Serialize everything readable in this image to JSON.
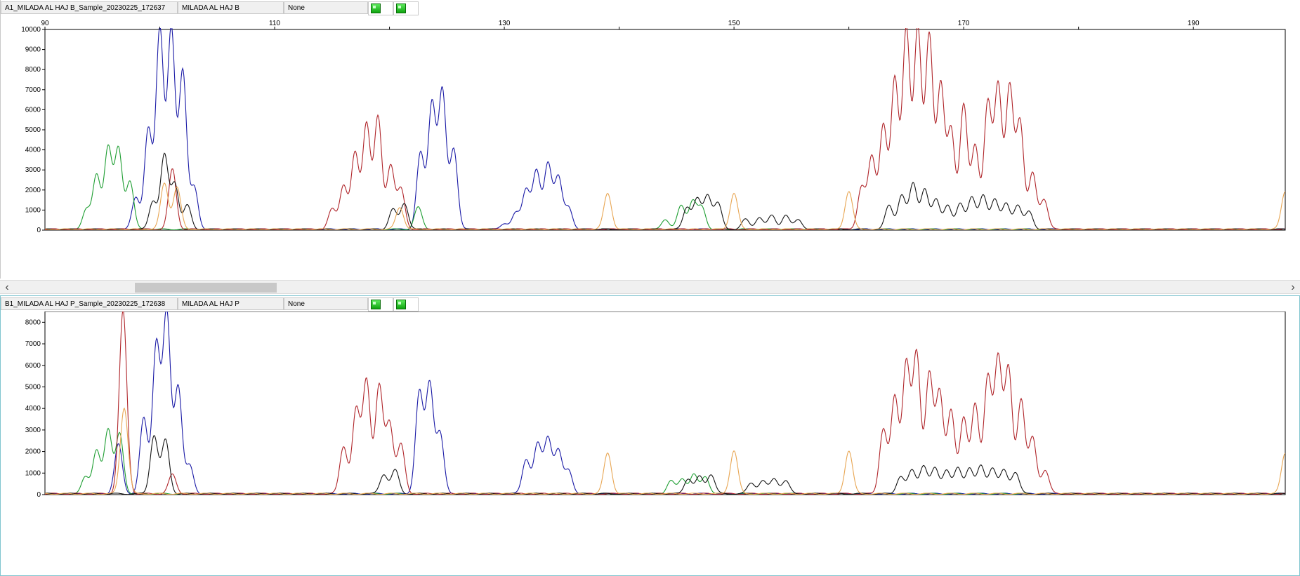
{
  "panels": [
    {
      "sample_file": "A1_MILADA AL HAJ B_Sample_20230225_172637",
      "sample_name": "MILADA AL HAJ B",
      "panel_name": "None"
    },
    {
      "sample_file": "B1_MILADA AL HAJ P_Sample_20230225_172638",
      "sample_name": "MILADA AL HAJ P",
      "panel_name": "None"
    }
  ],
  "scroll": {
    "left_arrow": "‹",
    "right_arrow": "›"
  },
  "colors": {
    "blue": "#1a1aa6",
    "green": "#1e9e32",
    "red": "#b0262b",
    "black": "#151515",
    "orange": "#e8a653",
    "frame": "#000000"
  },
  "chart_data": [
    {
      "type": "line",
      "title": "",
      "xlabel": "",
      "ylabel": "",
      "xlim": [
        90,
        198
      ],
      "ylim": [
        0,
        10000
      ],
      "x_ticks": [
        90,
        110,
        130,
        150,
        170,
        190
      ],
      "y_ticks": [
        0,
        1000,
        2000,
        3000,
        4000,
        5000,
        6000,
        7000,
        8000,
        9000,
        10000
      ],
      "grid": false,
      "series": [
        {
          "color": "blue",
          "peaks": [
            [
              97.9,
              1600
            ],
            [
              99.0,
              5000
            ],
            [
              100.0,
              10000
            ],
            [
              101.0,
              10000
            ],
            [
              102.0,
              7900
            ],
            [
              103.0,
              2100
            ],
            [
              122.7,
              3800
            ],
            [
              123.7,
              6300
            ],
            [
              124.6,
              6900
            ],
            [
              125.6,
              4000
            ],
            [
              130.0,
              300
            ],
            [
              131.0,
              800
            ],
            [
              131.9,
              2000
            ],
            [
              132.8,
              2900
            ],
            [
              133.8,
              3300
            ],
            [
              134.7,
              2600
            ],
            [
              135.6,
              1100
            ]
          ]
        },
        {
          "color": "green",
          "peaks": [
            [
              93.6,
              1000
            ],
            [
              94.5,
              2700
            ],
            [
              95.5,
              4100
            ],
            [
              96.4,
              4000
            ],
            [
              97.4,
              2400
            ],
            [
              122.5,
              1100
            ],
            [
              144.0,
              500
            ],
            [
              145.4,
              1200
            ],
            [
              146.4,
              1400
            ],
            [
              147.2,
              1100
            ]
          ]
        },
        {
          "color": "red",
          "peaks": [
            [
              101.1,
              3000
            ],
            [
              115.0,
              1000
            ],
            [
              116.0,
              2200
            ],
            [
              117.0,
              3800
            ],
            [
              118.0,
              5300
            ],
            [
              119.0,
              5600
            ],
            [
              120.1,
              3200
            ],
            [
              121.0,
              2000
            ],
            [
              161.1,
              2100
            ],
            [
              162.0,
              3600
            ],
            [
              163.0,
              5200
            ],
            [
              164.0,
              7500
            ],
            [
              165.0,
              10000
            ],
            [
              166.0,
              10000
            ],
            [
              167.0,
              9700
            ],
            [
              168.0,
              7200
            ],
            [
              168.9,
              5000
            ],
            [
              170.0,
              6200
            ],
            [
              171.0,
              4200
            ],
            [
              172.1,
              6300
            ],
            [
              173.0,
              7200
            ],
            [
              174.0,
              7100
            ],
            [
              174.9,
              5400
            ],
            [
              176.0,
              2800
            ],
            [
              177.0,
              1500
            ]
          ]
        },
        {
          "color": "black",
          "peaks": [
            [
              99.4,
              1400
            ],
            [
              100.4,
              3700
            ],
            [
              101.3,
              2300
            ],
            [
              102.4,
              1200
            ],
            [
              120.3,
              1000
            ],
            [
              121.3,
              1300
            ],
            [
              145.9,
              1100
            ],
            [
              146.8,
              1500
            ],
            [
              147.7,
              1700
            ],
            [
              148.6,
              1300
            ],
            [
              151.0,
              500
            ],
            [
              152.2,
              600
            ],
            [
              153.3,
              700
            ],
            [
              154.5,
              700
            ],
            [
              155.6,
              500
            ],
            [
              163.5,
              1200
            ],
            [
              164.6,
              1700
            ],
            [
              165.6,
              2300
            ],
            [
              166.6,
              2000
            ],
            [
              167.6,
              1500
            ],
            [
              168.6,
              1200
            ],
            [
              169.7,
              1300
            ],
            [
              170.7,
              1600
            ],
            [
              171.7,
              1700
            ],
            [
              172.7,
              1500
            ],
            [
              173.7,
              1300
            ],
            [
              174.7,
              1200
            ],
            [
              175.7,
              900
            ]
          ]
        },
        {
          "color": "orange",
          "peaks": [
            [
              100.4,
              2300
            ],
            [
              101.5,
              2100
            ],
            [
              120.9,
              1100
            ],
            [
              139.0,
              1800
            ],
            [
              150.0,
              1800
            ],
            [
              160.0,
              1900
            ],
            [
              198.0,
              1900
            ]
          ]
        }
      ]
    },
    {
      "type": "line",
      "title": "",
      "xlabel": "",
      "ylabel": "",
      "xlim": [
        90,
        198
      ],
      "ylim": [
        0,
        8500
      ],
      "x_ticks": [
        90,
        110,
        130,
        150,
        170,
        190
      ],
      "y_ticks": [
        0,
        1000,
        2000,
        3000,
        4000,
        5000,
        6000,
        7000,
        8000
      ],
      "grid": false,
      "series": [
        {
          "color": "blue",
          "peaks": [
            [
              96.4,
              2300
            ],
            [
              98.6,
              3500
            ],
            [
              99.7,
              7000
            ],
            [
              100.6,
              8400
            ],
            [
              101.6,
              5000
            ],
            [
              102.6,
              1300
            ],
            [
              122.6,
              4700
            ],
            [
              123.5,
              5100
            ],
            [
              124.4,
              2800
            ],
            [
              131.9,
              1600
            ],
            [
              132.9,
              2300
            ],
            [
              133.8,
              2600
            ],
            [
              134.7,
              2000
            ],
            [
              135.6,
              1100
            ]
          ]
        },
        {
          "color": "green",
          "peaks": [
            [
              93.5,
              800
            ],
            [
              94.5,
              2000
            ],
            [
              95.5,
              3000
            ],
            [
              96.5,
              2800
            ],
            [
              144.5,
              600
            ],
            [
              145.5,
              700
            ],
            [
              146.5,
              900
            ],
            [
              147.5,
              800
            ]
          ]
        },
        {
          "color": "red",
          "peaks": [
            [
              96.8,
              8500
            ],
            [
              101.1,
              900
            ],
            [
              116.0,
              2200
            ],
            [
              117.1,
              3900
            ],
            [
              118.0,
              5300
            ],
            [
              119.1,
              5000
            ],
            [
              120.0,
              3300
            ],
            [
              121.0,
              2300
            ],
            [
              163.0,
              3000
            ],
            [
              164.0,
              4500
            ],
            [
              165.0,
              6100
            ],
            [
              165.9,
              6500
            ],
            [
              167.0,
              5600
            ],
            [
              167.9,
              4700
            ],
            [
              168.9,
              3900
            ],
            [
              170.0,
              3500
            ],
            [
              171.0,
              4200
            ],
            [
              172.1,
              5400
            ],
            [
              173.0,
              6300
            ],
            [
              173.9,
              5800
            ],
            [
              175.0,
              4400
            ],
            [
              176.0,
              2600
            ],
            [
              177.1,
              1100
            ]
          ]
        },
        {
          "color": "black",
          "peaks": [
            [
              99.5,
              2700
            ],
            [
              100.5,
              2500
            ],
            [
              119.5,
              900
            ],
            [
              120.5,
              1100
            ],
            [
              146.0,
              700
            ],
            [
              147.0,
              800
            ],
            [
              148.0,
              900
            ],
            [
              151.5,
              500
            ],
            [
              152.5,
              600
            ],
            [
              153.5,
              700
            ],
            [
              154.5,
              600
            ],
            [
              164.5,
              800
            ],
            [
              165.5,
              1100
            ],
            [
              166.5,
              1300
            ],
            [
              167.5,
              1200
            ],
            [
              168.5,
              1100
            ],
            [
              169.5,
              1200
            ],
            [
              170.5,
              1200
            ],
            [
              171.5,
              1300
            ],
            [
              172.5,
              1200
            ],
            [
              173.5,
              1100
            ],
            [
              174.5,
              1000
            ]
          ]
        },
        {
          "color": "orange",
          "peaks": [
            [
              96.9,
              4000
            ],
            [
              139.0,
              1900
            ],
            [
              150.0,
              2000
            ],
            [
              160.0,
              2000
            ],
            [
              198.0,
              1900
            ]
          ]
        }
      ]
    }
  ]
}
